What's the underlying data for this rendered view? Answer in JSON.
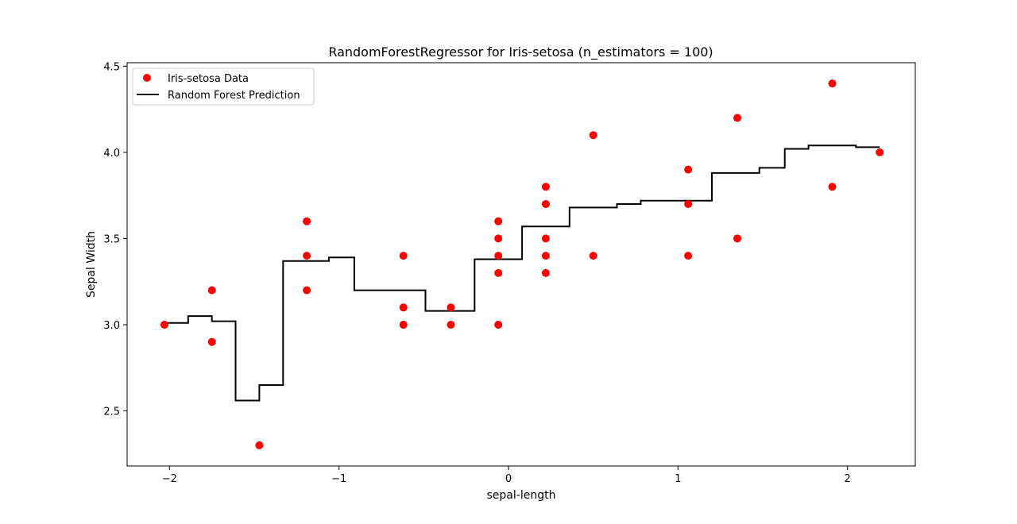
{
  "chart_data": {
    "type": "scatter",
    "title": "RandomForestRegressor for Iris-setosa (n_estimators = 100)",
    "xlabel": "sepal-length",
    "ylabel": "Sepal Width",
    "xlim": [
      -2.25,
      2.4
    ],
    "ylim": [
      2.18,
      4.52
    ],
    "x_ticks": [
      {
        "value": -2,
        "label": "−2"
      },
      {
        "value": -1,
        "label": "−1"
      },
      {
        "value": 0,
        "label": "0"
      },
      {
        "value": 1,
        "label": "1"
      },
      {
        "value": 2,
        "label": "2"
      }
    ],
    "y_ticks": [
      {
        "value": 2.5,
        "label": "2.5"
      },
      {
        "value": 3.0,
        "label": "3.0"
      },
      {
        "value": 3.5,
        "label": "3.5"
      },
      {
        "value": 4.0,
        "label": "4.0"
      },
      {
        "value": 4.5,
        "label": "4.5"
      }
    ],
    "grid": false,
    "legend_position": "top-left",
    "series": [
      {
        "name": "Iris-setosa Data",
        "kind": "scatter",
        "color": "#ff0000",
        "points": [
          [
            -2.03,
            3.0
          ],
          [
            -1.75,
            3.2
          ],
          [
            -1.75,
            2.9
          ],
          [
            -1.47,
            2.3
          ],
          [
            -1.19,
            3.6
          ],
          [
            -1.19,
            3.4
          ],
          [
            -1.19,
            3.2
          ],
          [
            -0.62,
            3.4
          ],
          [
            -0.62,
            3.1
          ],
          [
            -0.62,
            3.0
          ],
          [
            -0.34,
            3.1
          ],
          [
            -0.34,
            3.0
          ],
          [
            -0.06,
            3.6
          ],
          [
            -0.06,
            3.5
          ],
          [
            -0.06,
            3.4
          ],
          [
            -0.06,
            3.3
          ],
          [
            -0.06,
            3.0
          ],
          [
            0.22,
            3.8
          ],
          [
            0.22,
            3.7
          ],
          [
            0.22,
            3.5
          ],
          [
            0.22,
            3.4
          ],
          [
            0.22,
            3.3
          ],
          [
            0.5,
            4.1
          ],
          [
            0.5,
            3.4
          ],
          [
            1.06,
            3.9
          ],
          [
            1.06,
            3.7
          ],
          [
            1.06,
            3.4
          ],
          [
            1.35,
            4.2
          ],
          [
            1.35,
            3.5
          ],
          [
            1.91,
            4.4
          ],
          [
            1.91,
            3.8
          ],
          [
            2.19,
            4.0
          ]
        ]
      },
      {
        "name": "Random Forest Prediction",
        "kind": "step-line",
        "color": "#000000",
        "points": [
          [
            -2.03,
            3.01
          ],
          [
            -1.89,
            3.01
          ],
          [
            -1.89,
            3.05
          ],
          [
            -1.75,
            3.05
          ],
          [
            -1.75,
            3.02
          ],
          [
            -1.61,
            3.02
          ],
          [
            -1.61,
            2.56
          ],
          [
            -1.47,
            2.56
          ],
          [
            -1.47,
            2.65
          ],
          [
            -1.33,
            2.65
          ],
          [
            -1.33,
            3.37
          ],
          [
            -1.06,
            3.37
          ],
          [
            -1.06,
            3.39
          ],
          [
            -0.91,
            3.39
          ],
          [
            -0.91,
            3.2
          ],
          [
            -0.49,
            3.2
          ],
          [
            -0.49,
            3.08
          ],
          [
            -0.2,
            3.08
          ],
          [
            -0.2,
            3.38
          ],
          [
            0.08,
            3.38
          ],
          [
            0.08,
            3.57
          ],
          [
            0.36,
            3.57
          ],
          [
            0.36,
            3.68
          ],
          [
            0.64,
            3.68
          ],
          [
            0.64,
            3.7
          ],
          [
            0.78,
            3.7
          ],
          [
            0.78,
            3.72
          ],
          [
            1.2,
            3.72
          ],
          [
            1.2,
            3.88
          ],
          [
            1.48,
            3.88
          ],
          [
            1.48,
            3.91
          ],
          [
            1.63,
            3.91
          ],
          [
            1.63,
            4.02
          ],
          [
            1.77,
            4.02
          ],
          [
            1.77,
            4.04
          ],
          [
            2.05,
            4.04
          ],
          [
            2.05,
            4.03
          ],
          [
            2.19,
            4.03
          ]
        ]
      }
    ]
  }
}
